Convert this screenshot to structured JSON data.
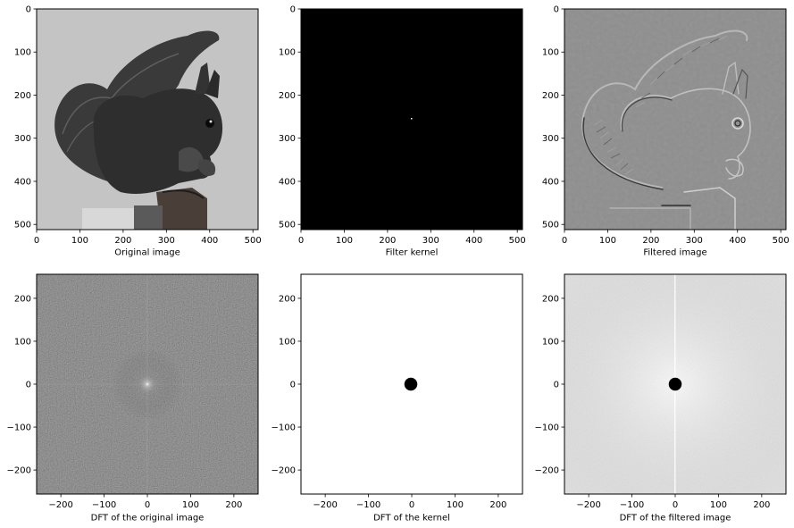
{
  "chart_data": [
    {
      "type": "heatmap",
      "content": "grayscale photograph of a squirrel",
      "xlabel": "Original image",
      "xlim": [
        0,
        512
      ],
      "ylim": [
        512,
        0
      ],
      "xticks": [
        0,
        100,
        200,
        300,
        400,
        500
      ],
      "yticks": [
        0,
        100,
        200,
        300,
        400,
        500
      ],
      "colormap": "gray"
    },
    {
      "type": "heatmap",
      "content": "black image with a single bright pixel near center",
      "xlabel": "Filter kernel",
      "xlim": [
        0,
        512
      ],
      "ylim": [
        512,
        0
      ],
      "xticks": [
        0,
        100,
        200,
        300,
        400,
        500
      ],
      "yticks": [
        0,
        100,
        200,
        300,
        400,
        500
      ],
      "colormap": "gray",
      "bright_point": [
        256,
        256
      ]
    },
    {
      "type": "heatmap",
      "content": "high-pass filtered squirrel image, edges on mid-gray",
      "xlabel": "Filtered image",
      "xlim": [
        0,
        512
      ],
      "ylim": [
        512,
        0
      ],
      "xticks": [
        0,
        100,
        200,
        300,
        400,
        500
      ],
      "yticks": [
        0,
        100,
        200,
        300,
        400,
        500
      ],
      "colormap": "gray"
    },
    {
      "type": "heatmap",
      "content": "log-magnitude spectrum, dark with bright center and cross lines",
      "xlabel": "DFT of the original image",
      "xlim": [
        -256,
        256
      ],
      "ylim": [
        -256,
        256
      ],
      "xticks": [
        -200,
        -100,
        0,
        100,
        200
      ],
      "yticks": [
        200,
        100,
        0,
        -100,
        -200
      ],
      "colormap": "gray"
    },
    {
      "type": "heatmap",
      "content": "white mask with black disk at center",
      "xlabel": "DFT of the kernel",
      "xlim": [
        -256,
        256
      ],
      "ylim": [
        -256,
        256
      ],
      "xticks": [
        -200,
        -100,
        0,
        100,
        200
      ],
      "yticks": [
        200,
        100,
        0,
        -100,
        -200
      ],
      "colormap": "gray",
      "disk_radius": 15
    },
    {
      "type": "heatmap",
      "content": "light noisy spectrum with black disk at center",
      "xlabel": "DFT of the filtered image",
      "xlim": [
        -256,
        256
      ],
      "ylim": [
        -256,
        256
      ],
      "xticks": [
        -200,
        -100,
        0,
        100,
        200
      ],
      "yticks": [
        200,
        100,
        0,
        -100,
        -200
      ],
      "colormap": "gray",
      "disk_radius": 15
    }
  ],
  "yticks_top": [
    "0",
    "100",
    "200",
    "300",
    "400",
    "500"
  ],
  "xticks_top": [
    "0",
    "100",
    "200",
    "300",
    "400",
    "500"
  ],
  "yticks_bottom": [
    "200",
    "100",
    "0",
    "−100",
    "−200"
  ],
  "xticks_bottom": [
    "−200",
    "−100",
    "0",
    "100",
    "200"
  ]
}
